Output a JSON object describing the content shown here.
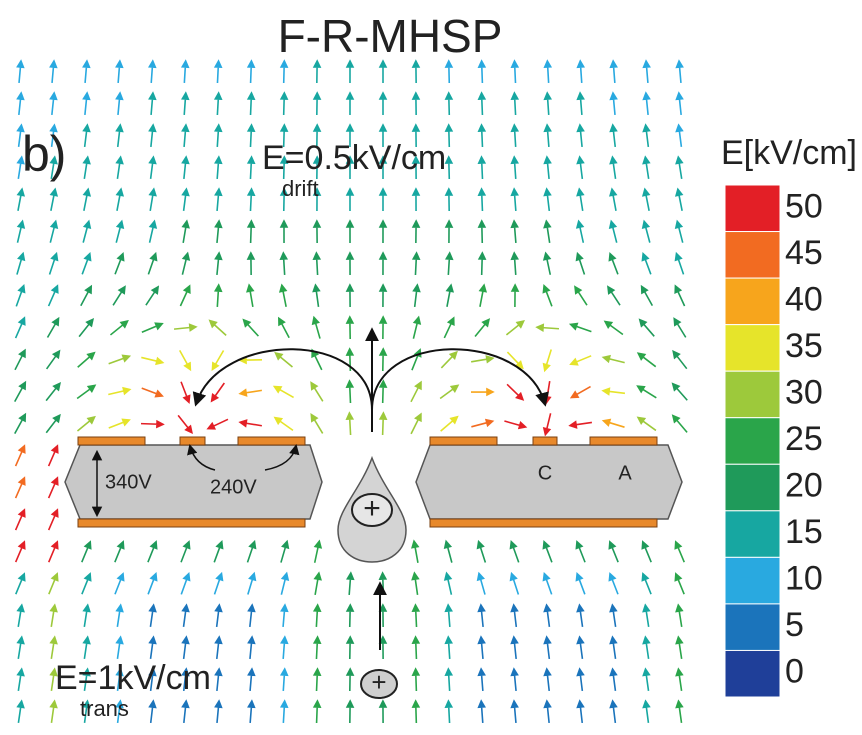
{
  "title": "F-R-MHSP",
  "panel_label": "b)",
  "drift_field": {
    "text": "E=0.5kV/cm",
    "subscript": "drift"
  },
  "trans_field": {
    "text": "E=1kV/cm",
    "subscript": "trans"
  },
  "voltages": {
    "anode_cathode": "240V",
    "top_bottom": "340V"
  },
  "electrodes": {
    "cathode": "C",
    "anode": "A"
  },
  "ion_symbol": "+",
  "colorbar": {
    "title": "E[kV/cm]",
    "ticks": [
      50,
      45,
      40,
      35,
      30,
      25,
      20,
      15,
      10,
      5,
      0
    ],
    "colors": [
      "#e31f26",
      "#f26b21",
      "#f7a51c",
      "#e6e42a",
      "#9dc93b",
      "#2aa54a",
      "#1f9a5a",
      "#17a7a1",
      "#29a9e0",
      "#1b74bb",
      "#1f3f99"
    ]
  }
}
